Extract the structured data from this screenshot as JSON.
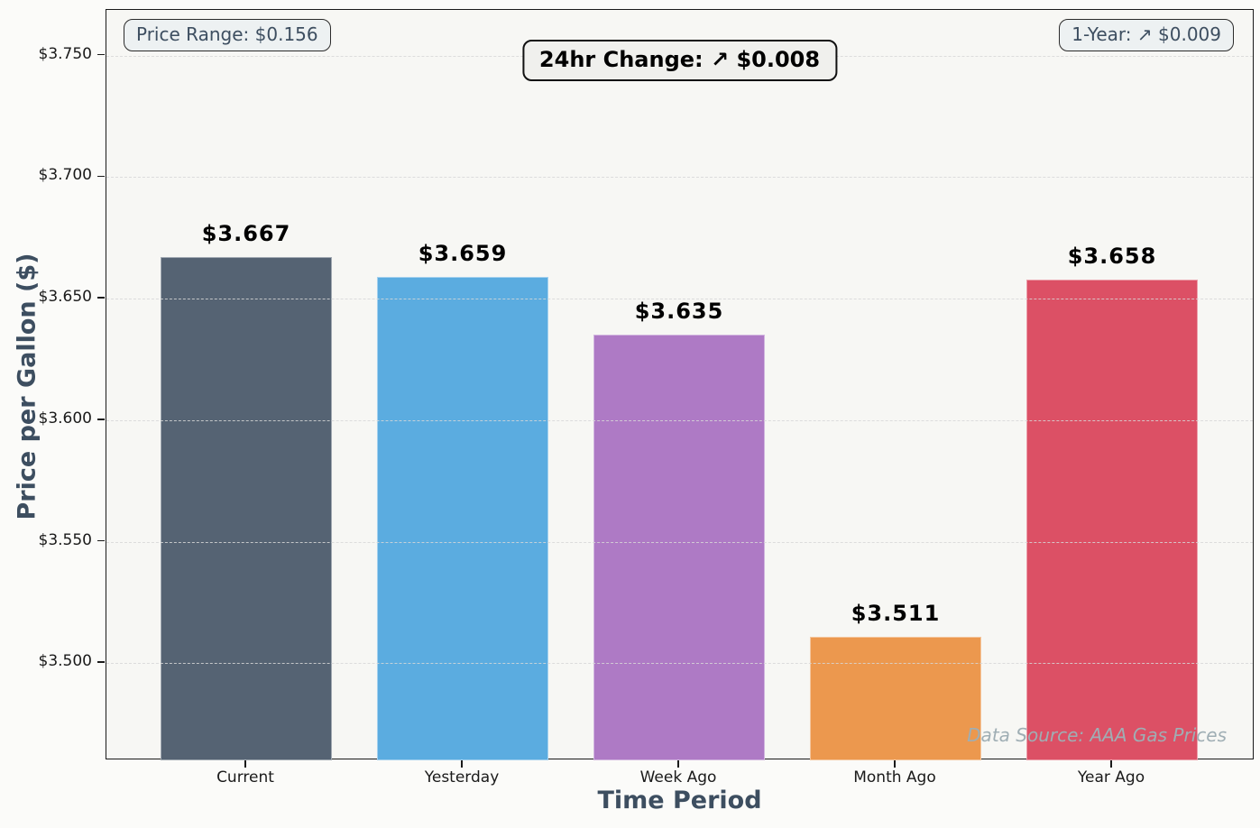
{
  "chart_data": {
    "type": "bar",
    "title": "",
    "xlabel": "Time Period",
    "ylabel": "Price per Gallon ($)",
    "categories": [
      "Current",
      "Yesterday",
      "Week Ago",
      "Month Ago",
      "Year Ago"
    ],
    "values": [
      3.667,
      3.659,
      3.635,
      3.511,
      3.658
    ],
    "bar_labels": [
      "$3.667",
      "$3.659",
      "$3.635",
      "$3.511",
      "$3.658"
    ],
    "bar_colors": [
      "#556373",
      "#5BACE0",
      "#AE7AC5",
      "#EC984E",
      "#DC5065"
    ],
    "ylim": [
      3.46,
      3.7688
    ],
    "yticks": [
      3.5,
      3.55,
      3.6,
      3.65,
      3.7,
      3.75
    ],
    "ytick_labels": [
      "$3.500",
      "$3.550",
      "$3.600",
      "$3.650",
      "$3.700",
      "$3.750"
    ],
    "grid": "horizontal-dashed",
    "legend_position": "none",
    "annotations": {
      "price_range": "Price Range: $0.156",
      "change_24hr": "24hr Change: ↗ $0.008",
      "one_year": "1-Year: ↗ $0.009",
      "data_source": "Data Source: AAA Gas Prices"
    }
  },
  "colors": {
    "figure_bg": "#fbfbf9",
    "plot_bg": "#f7f7f4",
    "spine": "#1a1a1a",
    "grid": "#d7d7d7",
    "axis_title_text": "#3D4E60",
    "tick_text": "#1a1a1a",
    "value_label_text": "#000000",
    "side_annotation_text": "#3D4E60",
    "center_annotation_text": "#000000",
    "data_source_text": "#9FAEB4"
  }
}
